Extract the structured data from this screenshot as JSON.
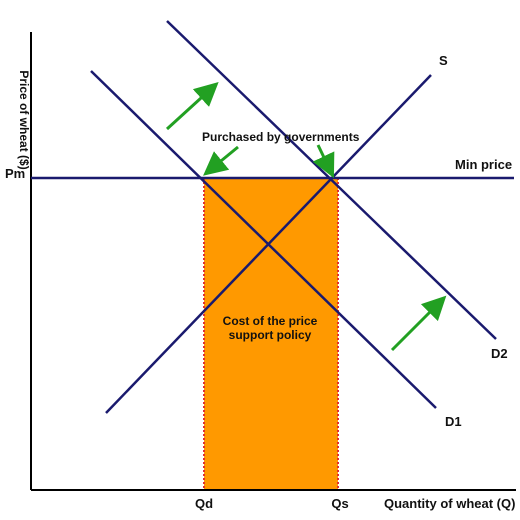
{
  "colors": {
    "curve": "#1a1a6e",
    "region_fill": "#ff9900",
    "region_border": "#e03030",
    "arrow": "#22a022",
    "axis": "#000000"
  },
  "labels": {
    "y_axis": "Price of wheat ($)",
    "x_axis": "Quantity of wheat (Q)",
    "price_floor_tick": "Pm",
    "min_price_line": "Min price",
    "supply_curve": "S",
    "demand_original": "D1",
    "demand_shifted": "D2",
    "qd_tick": "Qd",
    "qs_tick": "Qs",
    "purchased_annotation": "Purchased by governments",
    "cost_region_line1": "Cost of the price",
    "cost_region_line2": "support policy"
  },
  "icons": {
    "shift_arrow": "up-right-arrow",
    "pointer_arrow": "pointer-arrow"
  }
}
